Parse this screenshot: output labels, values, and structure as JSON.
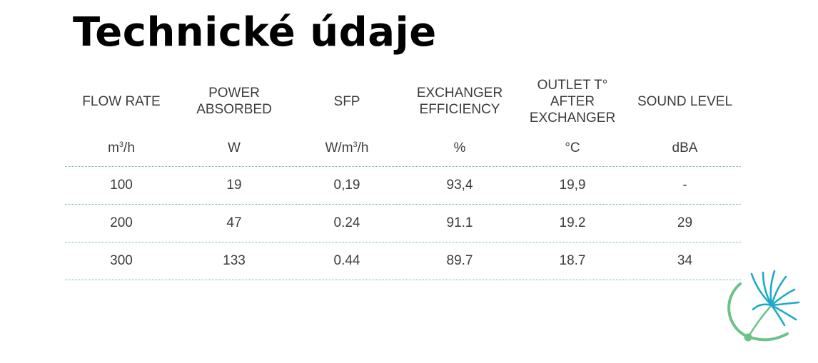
{
  "title": "Technické údaje",
  "table": {
    "headers": [
      "FLOW RATE",
      "POWER\nABSORBED",
      "SFP",
      "EXCHANGER\nEFFICIENCY",
      "OUTLET T°\nAFTER\nEXCHANGER",
      "SOUND LEVEL"
    ],
    "units": [
      {
        "base": "m",
        "sup": "3",
        "rest": "/h"
      },
      {
        "base": "W",
        "sup": "",
        "rest": ""
      },
      {
        "base": "W/m",
        "sup": "3",
        "rest": "/h"
      },
      {
        "base": "%",
        "sup": "",
        "rest": ""
      },
      {
        "base": "°C",
        "sup": "",
        "rest": ""
      },
      {
        "base": "dBA",
        "sup": "",
        "rest": ""
      }
    ],
    "rows": [
      [
        "100",
        "19",
        "0,19",
        "93,4",
        "19,9",
        "-"
      ],
      [
        "200",
        "47",
        "0.24",
        "91.1",
        "19.2",
        "29"
      ],
      [
        "300",
        "133",
        "0.44",
        "89.7",
        "18.7",
        "34"
      ]
    ]
  },
  "colors": {
    "divider": "#5fb89a",
    "logo_teal": "#1fa9c9",
    "logo_green": "#6cc38a"
  },
  "icons": [
    "dandelion-logo-icon"
  ]
}
